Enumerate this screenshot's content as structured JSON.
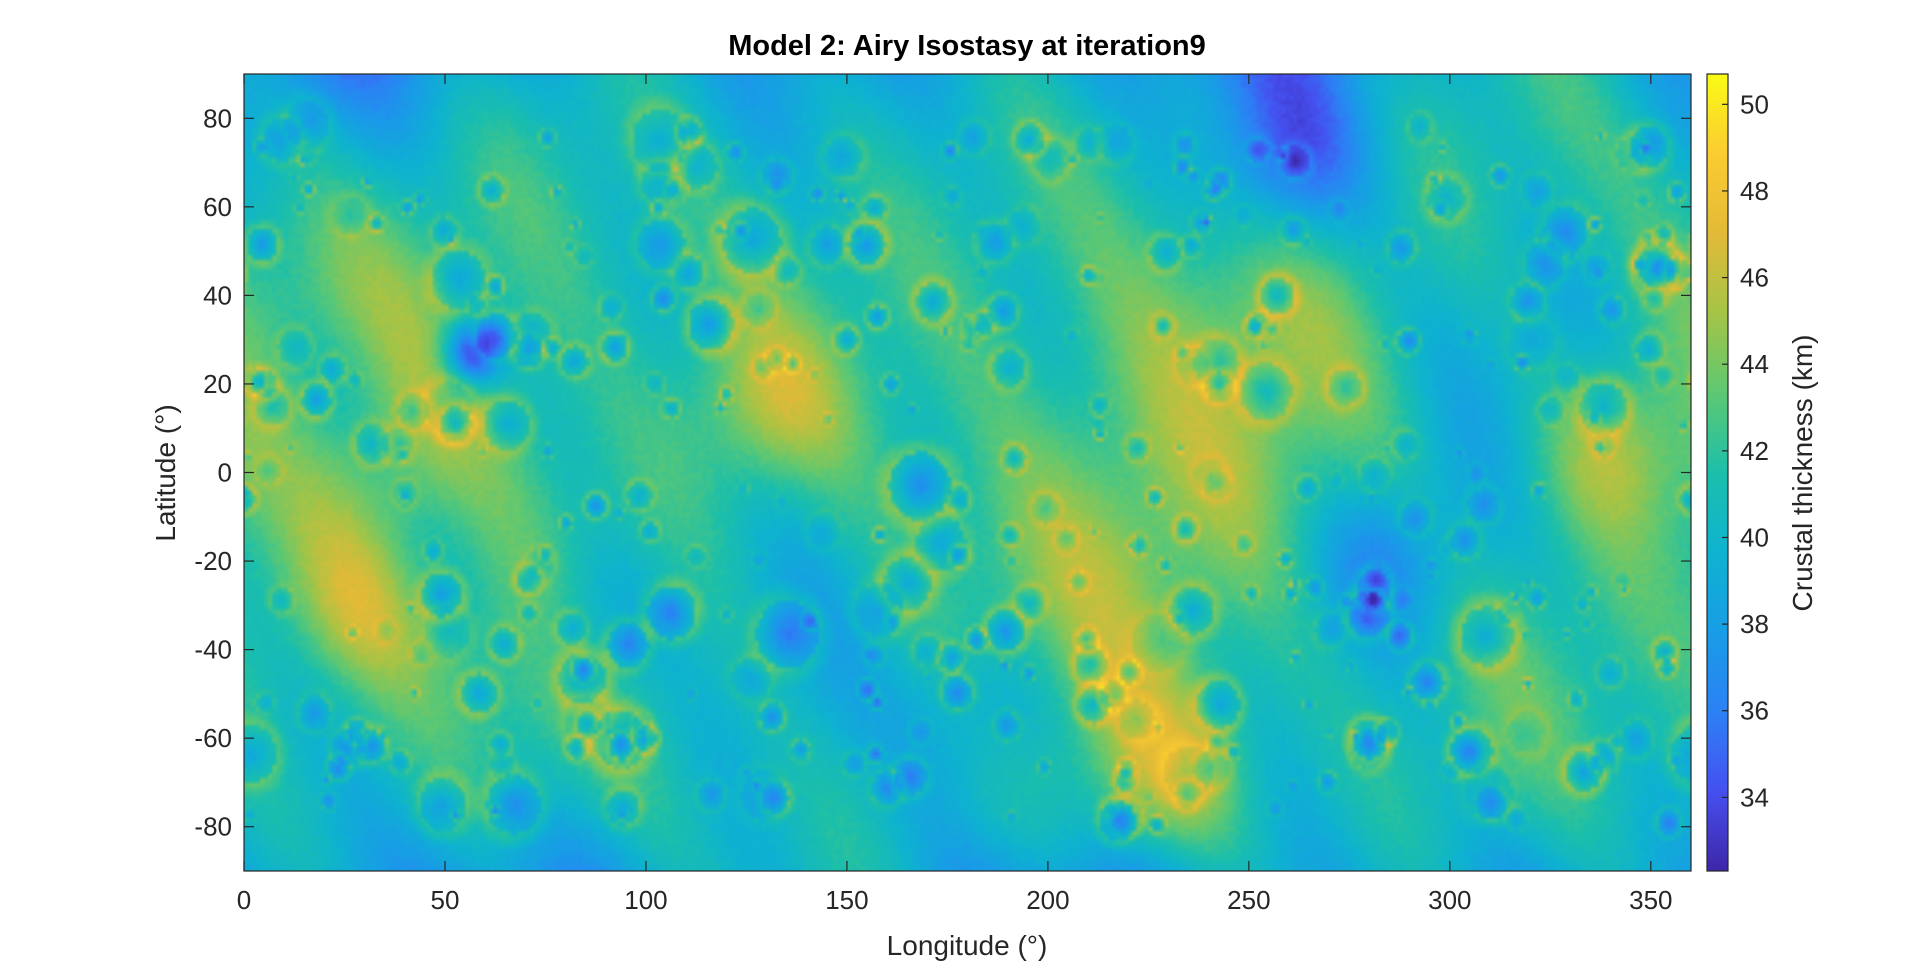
{
  "chart_data": {
    "type": "heatmap",
    "title": "Model 2: Airy Isostasy at iteration9",
    "xlabel": "Longitude (°)",
    "ylabel": "Latitude (°)",
    "colorbar_label": "Crustal thickness (km)",
    "colormap": "parula",
    "xlim": [
      0,
      360
    ],
    "ylim": [
      -90,
      90
    ],
    "clim": [
      32.3,
      50.7
    ],
    "xticks": [
      0,
      50,
      100,
      150,
      200,
      250,
      300,
      350
    ],
    "yticks": [
      -80,
      -60,
      -40,
      -20,
      0,
      20,
      40,
      60,
      80
    ],
    "colorbar_ticks": [
      34,
      36,
      38,
      40,
      42,
      44,
      46,
      48,
      50
    ],
    "grid": false,
    "colorbar_position": "right",
    "features": [
      {
        "lon": 57,
        "lat": 27,
        "value": 32.5
      },
      {
        "lon": 185,
        "lat": -53,
        "value": 38
      },
      {
        "lon": 285,
        "lat": -20,
        "value": 38
      },
      {
        "lon": 340,
        "lat": 5,
        "value": 47.5
      },
      {
        "lon": 130,
        "lat": 15,
        "value": 47
      },
      {
        "lon": 30,
        "lat": -30,
        "value": 47
      },
      {
        "lon": 230,
        "lat": -68,
        "value": 48
      },
      {
        "lon": 260,
        "lat": 70,
        "value": 37
      },
      {
        "lon": 20,
        "lat": 18,
        "value": 39
      },
      {
        "lon": 50,
        "lat": -20,
        "value": 39
      },
      {
        "lon": 85,
        "lat": -35,
        "value": 38.5
      }
    ],
    "colors": {
      "low": "#3e26a8",
      "mid_low": "#2e87f7",
      "mid": "#12bac0",
      "mid_high": "#8ccc5e",
      "high": "#fbba3d",
      "max": "#f9fb15"
    }
  }
}
